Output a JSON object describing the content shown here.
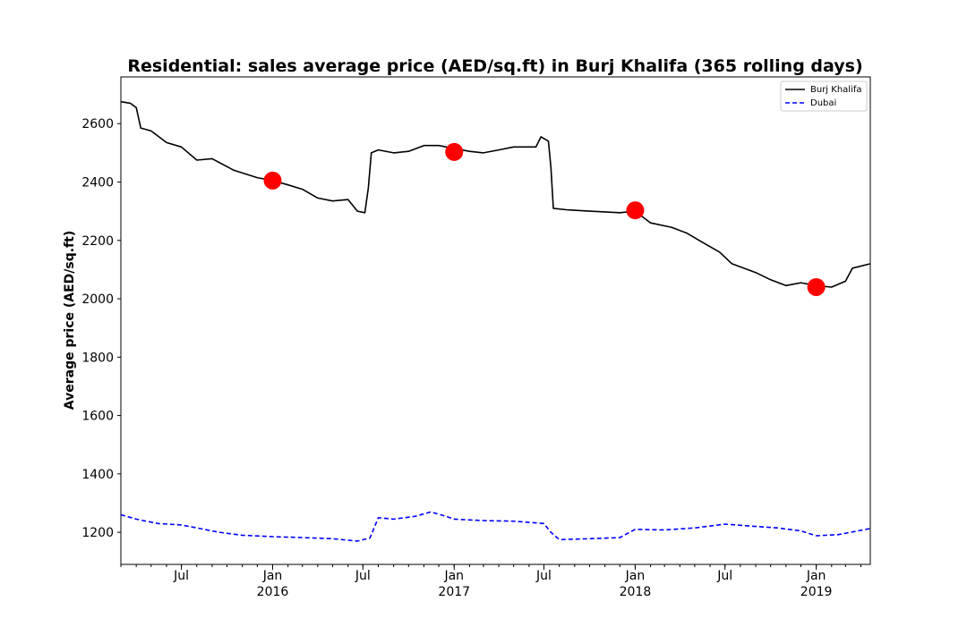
{
  "chart_data": {
    "type": "line",
    "title": "Residential: sales average price (AED/sq.ft) in Burj Khalifa (365 rolling days)",
    "xlabel": "",
    "ylabel": "Average price (AED/sq.ft)",
    "x_range": [
      "2015-03-01",
      "2019-04-20"
    ],
    "ylim": [
      1090,
      2760
    ],
    "yticks": [
      1200,
      1400,
      1600,
      1800,
      2000,
      2200,
      2400,
      2600
    ],
    "xticks": [
      {
        "date": "2015-07-01",
        "label": "Jul",
        "sub": ""
      },
      {
        "date": "2016-01-01",
        "label": "Jan",
        "sub": "2016"
      },
      {
        "date": "2016-07-01",
        "label": "Jul",
        "sub": ""
      },
      {
        "date": "2017-01-01",
        "label": "Jan",
        "sub": "2017"
      },
      {
        "date": "2017-07-01",
        "label": "Jul",
        "sub": ""
      },
      {
        "date": "2018-01-01",
        "label": "Jan",
        "sub": "2018"
      },
      {
        "date": "2018-07-01",
        "label": "Jul",
        "sub": ""
      },
      {
        "date": "2019-01-01",
        "label": "Jan",
        "sub": "2019"
      }
    ],
    "legend_position": "top-right",
    "series": [
      {
        "name": "Burj Khalifa",
        "color": "#000000",
        "style": "solid",
        "points": [
          [
            "2015-03-01",
            2675
          ],
          [
            "2015-03-20",
            2670
          ],
          [
            "2015-04-01",
            2655
          ],
          [
            "2015-04-10",
            2585
          ],
          [
            "2015-05-01",
            2575
          ],
          [
            "2015-06-01",
            2535
          ],
          [
            "2015-07-01",
            2520
          ],
          [
            "2015-08-01",
            2475
          ],
          [
            "2015-09-01",
            2480
          ],
          [
            "2015-10-15",
            2440
          ],
          [
            "2015-12-01",
            2415
          ],
          [
            "2016-01-01",
            2405
          ],
          [
            "2016-02-01",
            2390
          ],
          [
            "2016-03-01",
            2375
          ],
          [
            "2016-04-01",
            2345
          ],
          [
            "2016-05-01",
            2335
          ],
          [
            "2016-06-01",
            2340
          ],
          [
            "2016-06-20",
            2300
          ],
          [
            "2016-07-05",
            2295
          ],
          [
            "2016-07-12",
            2380
          ],
          [
            "2016-07-18",
            2500
          ],
          [
            "2016-08-01",
            2510
          ],
          [
            "2016-09-01",
            2500
          ],
          [
            "2016-10-01",
            2505
          ],
          [
            "2016-11-01",
            2525
          ],
          [
            "2016-12-01",
            2525
          ],
          [
            "2017-01-01",
            2515
          ],
          [
            "2017-02-01",
            2505
          ],
          [
            "2017-03-01",
            2500
          ],
          [
            "2017-04-01",
            2510
          ],
          [
            "2017-05-01",
            2520
          ],
          [
            "2017-06-15",
            2520
          ],
          [
            "2017-06-25",
            2555
          ],
          [
            "2017-07-10",
            2540
          ],
          [
            "2017-07-15",
            2450
          ],
          [
            "2017-07-20",
            2310
          ],
          [
            "2017-08-15",
            2305
          ],
          [
            "2017-10-01",
            2300
          ],
          [
            "2017-12-01",
            2295
          ],
          [
            "2018-01-01",
            2300
          ],
          [
            "2018-02-01",
            2260
          ],
          [
            "2018-03-15",
            2245
          ],
          [
            "2018-04-15",
            2225
          ],
          [
            "2018-05-15",
            2195
          ],
          [
            "2018-06-20",
            2160
          ],
          [
            "2018-07-15",
            2120
          ],
          [
            "2018-09-01",
            2090
          ],
          [
            "2018-10-01",
            2065
          ],
          [
            "2018-11-01",
            2045
          ],
          [
            "2018-12-01",
            2055
          ],
          [
            "2019-01-01",
            2045
          ],
          [
            "2019-02-01",
            2040
          ],
          [
            "2019-03-01",
            2060
          ],
          [
            "2019-03-15",
            2105
          ],
          [
            "2019-04-20",
            2120
          ]
        ]
      },
      {
        "name": "Dubai",
        "color": "#0000ff",
        "style": "dashed",
        "points": [
          [
            "2015-03-01",
            1260
          ],
          [
            "2015-04-01",
            1245
          ],
          [
            "2015-05-15",
            1230
          ],
          [
            "2015-07-01",
            1225
          ],
          [
            "2015-08-01",
            1215
          ],
          [
            "2015-09-15",
            1200
          ],
          [
            "2015-11-01",
            1190
          ],
          [
            "2016-01-01",
            1185
          ],
          [
            "2016-03-01",
            1182
          ],
          [
            "2016-05-01",
            1178
          ],
          [
            "2016-06-20",
            1170
          ],
          [
            "2016-07-15",
            1180
          ],
          [
            "2016-08-01",
            1250
          ],
          [
            "2016-09-01",
            1245
          ],
          [
            "2016-10-15",
            1255
          ],
          [
            "2016-11-15",
            1270
          ],
          [
            "2016-12-15",
            1255
          ],
          [
            "2017-01-01",
            1245
          ],
          [
            "2017-03-01",
            1240
          ],
          [
            "2017-05-01",
            1238
          ],
          [
            "2017-07-01",
            1230
          ],
          [
            "2017-07-15",
            1200
          ],
          [
            "2017-08-01",
            1175
          ],
          [
            "2017-10-01",
            1178
          ],
          [
            "2017-12-01",
            1182
          ],
          [
            "2018-01-01",
            1210
          ],
          [
            "2018-03-01",
            1208
          ],
          [
            "2018-05-01",
            1215
          ],
          [
            "2018-07-01",
            1228
          ],
          [
            "2018-09-01",
            1220
          ],
          [
            "2018-10-15",
            1215
          ],
          [
            "2018-12-01",
            1205
          ],
          [
            "2019-01-01",
            1188
          ],
          [
            "2019-02-15",
            1192
          ],
          [
            "2019-04-20",
            1213
          ]
        ]
      }
    ],
    "markers": [
      {
        "date": "2016-01-01",
        "value": 2405,
        "color": "#ff0000"
      },
      {
        "date": "2017-01-01",
        "value": 2503,
        "color": "#ff0000"
      },
      {
        "date": "2018-01-01",
        "value": 2303,
        "color": "#ff0000"
      },
      {
        "date": "2019-01-01",
        "value": 2040,
        "color": "#ff0000"
      }
    ]
  }
}
